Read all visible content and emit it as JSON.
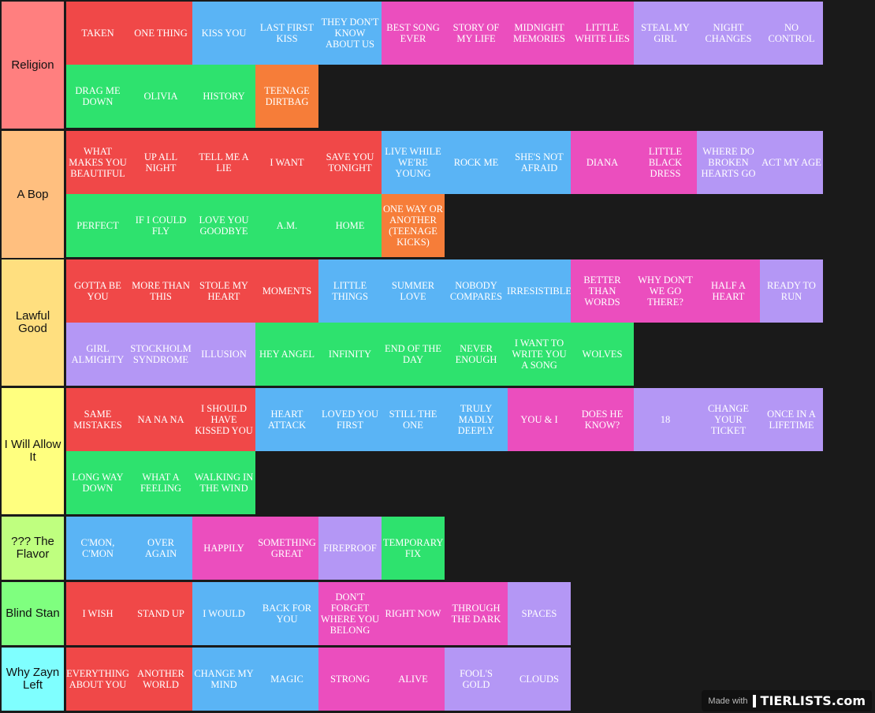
{
  "colors": {
    "background": "#1a1a1a",
    "red": "#f04848",
    "blue": "#5ab4f5",
    "pink": "#eb4ebe",
    "lavender": "#b497f5",
    "green": "#2ee26e",
    "orange": "#f67d39"
  },
  "tiers": [
    {
      "label": "Religion",
      "color": "#ff7f7f",
      "items": [
        {
          "text": "TAKEN",
          "color": "red"
        },
        {
          "text": "ONE THING",
          "color": "red"
        },
        {
          "text": "KISS YOU",
          "color": "blue"
        },
        {
          "text": "LAST FIRST KISS",
          "color": "blue"
        },
        {
          "text": "THEY DON'T KNOW ABOUT US",
          "color": "blue"
        },
        {
          "text": "BEST SONG EVER",
          "color": "pink"
        },
        {
          "text": "STORY OF MY LIFE",
          "color": "pink"
        },
        {
          "text": "MIDNIGHT MEMORIES",
          "color": "pink"
        },
        {
          "text": "LITTLE WHITE LIES",
          "color": "pink"
        },
        {
          "text": "STEAL MY GIRL",
          "color": "lavender"
        },
        {
          "text": "NIGHT CHANGES",
          "color": "lavender"
        },
        {
          "text": "NO CONTROL",
          "color": "lavender"
        },
        {
          "text": "DRAG ME DOWN",
          "color": "green"
        },
        {
          "text": "OLIVIA",
          "color": "green"
        },
        {
          "text": "HISTORY",
          "color": "green"
        },
        {
          "text": "TEENAGE DIRTBAG",
          "color": "orange"
        }
      ]
    },
    {
      "label": "A Bop",
      "color": "#ffbf7f",
      "items": [
        {
          "text": "WHAT MAKES YOU BEAUTIFUL",
          "color": "red"
        },
        {
          "text": "UP ALL NIGHT",
          "color": "red"
        },
        {
          "text": "TELL ME A LIE",
          "color": "red"
        },
        {
          "text": "I WANT",
          "color": "red"
        },
        {
          "text": "SAVE YOU TONIGHT",
          "color": "red"
        },
        {
          "text": "LIVE WHILE WE'RE YOUNG",
          "color": "blue"
        },
        {
          "text": "ROCK ME",
          "color": "blue"
        },
        {
          "text": "SHE'S NOT AFRAID",
          "color": "blue"
        },
        {
          "text": "DIANA",
          "color": "pink"
        },
        {
          "text": "LITTLE BLACK DRESS",
          "color": "pink"
        },
        {
          "text": "WHERE DO BROKEN HEARTS GO",
          "color": "lavender"
        },
        {
          "text": "ACT MY AGE",
          "color": "lavender"
        },
        {
          "text": "PERFECT",
          "color": "green"
        },
        {
          "text": "IF I COULD FLY",
          "color": "green"
        },
        {
          "text": "LOVE YOU GOODBYE",
          "color": "green"
        },
        {
          "text": "A.M.",
          "color": "green"
        },
        {
          "text": "HOME",
          "color": "green"
        },
        {
          "text": "ONE WAY OR ANOTHER (TEENAGE KICKS)",
          "color": "orange"
        }
      ]
    },
    {
      "label": "Lawful Good",
      "color": "#ffdf7f",
      "items": [
        {
          "text": "GOTTA BE YOU",
          "color": "red"
        },
        {
          "text": "MORE THAN THIS",
          "color": "red"
        },
        {
          "text": "STOLE MY HEART",
          "color": "red"
        },
        {
          "text": "MOMENTS",
          "color": "red"
        },
        {
          "text": "LITTLE THINGS",
          "color": "blue"
        },
        {
          "text": "SUMMER LOVE",
          "color": "blue"
        },
        {
          "text": "NOBODY COMPARES",
          "color": "blue"
        },
        {
          "text": "IRRESISTIBLE",
          "color": "blue"
        },
        {
          "text": "BETTER THAN WORDS",
          "color": "pink"
        },
        {
          "text": "WHY DON'T WE GO THERE?",
          "color": "pink"
        },
        {
          "text": "HALF A HEART",
          "color": "pink"
        },
        {
          "text": "READY TO RUN",
          "color": "lavender"
        },
        {
          "text": "GIRL ALMIGHTY",
          "color": "lavender"
        },
        {
          "text": "STOCKHOLM SYNDROME",
          "color": "lavender"
        },
        {
          "text": "ILLUSION",
          "color": "lavender"
        },
        {
          "text": "HEY ANGEL",
          "color": "green"
        },
        {
          "text": "INFINITY",
          "color": "green"
        },
        {
          "text": "END OF THE DAY",
          "color": "green"
        },
        {
          "text": "NEVER ENOUGH",
          "color": "green"
        },
        {
          "text": "I WANT TO WRITE YOU A SONG",
          "color": "green"
        },
        {
          "text": "WOLVES",
          "color": "green"
        }
      ]
    },
    {
      "label": "I Will Allow It",
      "color": "#ffff7f",
      "items": [
        {
          "text": "SAME MISTAKES",
          "color": "red"
        },
        {
          "text": "NA NA NA",
          "color": "red"
        },
        {
          "text": "I SHOULD HAVE KISSED YOU",
          "color": "red"
        },
        {
          "text": "HEART ATTACK",
          "color": "blue"
        },
        {
          "text": "LOVED YOU FIRST",
          "color": "blue"
        },
        {
          "text": "STILL THE ONE",
          "color": "blue"
        },
        {
          "text": "TRULY MADLY DEEPLY",
          "color": "blue"
        },
        {
          "text": "YOU & I",
          "color": "pink"
        },
        {
          "text": "DOES HE KNOW?",
          "color": "pink"
        },
        {
          "text": "18",
          "color": "lavender"
        },
        {
          "text": "CHANGE YOUR TICKET",
          "color": "lavender"
        },
        {
          "text": "ONCE IN A LIFETIME",
          "color": "lavender"
        },
        {
          "text": "LONG WAY DOWN",
          "color": "green"
        },
        {
          "text": "WHAT A FEELING",
          "color": "green"
        },
        {
          "text": "WALKING IN THE WIND",
          "color": "green"
        }
      ]
    },
    {
      "label": "??? The Flavor",
      "color": "#bfff7f",
      "items": [
        {
          "text": "C'MON, C'MON",
          "color": "blue"
        },
        {
          "text": "OVER AGAIN",
          "color": "blue"
        },
        {
          "text": "HAPPILY",
          "color": "pink"
        },
        {
          "text": "SOMETHING GREAT",
          "color": "pink"
        },
        {
          "text": "FIREPROOF",
          "color": "lavender"
        },
        {
          "text": "TEMPORARY FIX",
          "color": "green"
        }
      ]
    },
    {
      "label": "Blind Stan",
      "color": "#7fff7f",
      "items": [
        {
          "text": "I WISH",
          "color": "red"
        },
        {
          "text": "STAND UP",
          "color": "red"
        },
        {
          "text": "I WOULD",
          "color": "blue"
        },
        {
          "text": "BACK FOR YOU",
          "color": "blue"
        },
        {
          "text": "DON'T FORGET WHERE YOU BELONG",
          "color": "pink"
        },
        {
          "text": "RIGHT NOW",
          "color": "pink"
        },
        {
          "text": "THROUGH THE DARK",
          "color": "pink"
        },
        {
          "text": "SPACES",
          "color": "lavender"
        }
      ]
    },
    {
      "label": "Why Zayn Left",
      "color": "#7fffff",
      "items": [
        {
          "text": "EVERYTHING ABOUT YOU",
          "color": "red"
        },
        {
          "text": "ANOTHER WORLD",
          "color": "red"
        },
        {
          "text": "CHANGE MY MIND",
          "color": "blue"
        },
        {
          "text": "MAGIC",
          "color": "blue"
        },
        {
          "text": "STRONG",
          "color": "pink"
        },
        {
          "text": "ALIVE",
          "color": "pink"
        },
        {
          "text": "FOOL'S GOLD",
          "color": "lavender"
        },
        {
          "text": "CLOUDS",
          "color": "lavender"
        }
      ]
    }
  ],
  "watermark": {
    "made_with": "Made with",
    "brand": "TIERLISTS.com"
  }
}
